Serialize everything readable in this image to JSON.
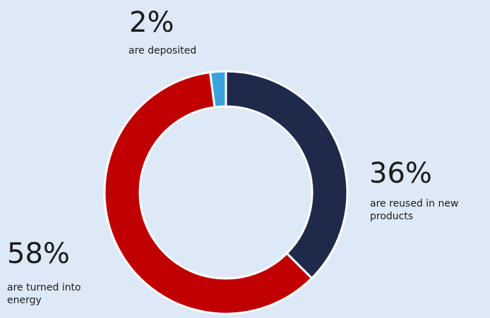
{
  "chart_data": {
    "type": "pie",
    "categories": [
      "are reused in new products",
      "are turned into energy",
      "are deposited"
    ],
    "values": [
      36,
      58,
      2
    ],
    "value_labels": [
      "36%",
      "58%",
      "2%"
    ],
    "colors": [
      "#1f2a4b",
      "#c00000",
      "#3aa3dc"
    ],
    "donut": true,
    "title": "",
    "legend": "none"
  },
  "labels": {
    "reused": {
      "percent": "36%",
      "text": "are reused in new products"
    },
    "energy": {
      "percent": "58%",
      "text": "are turned into energy"
    },
    "deposited": {
      "percent": "2%",
      "text": "are deposited"
    }
  }
}
